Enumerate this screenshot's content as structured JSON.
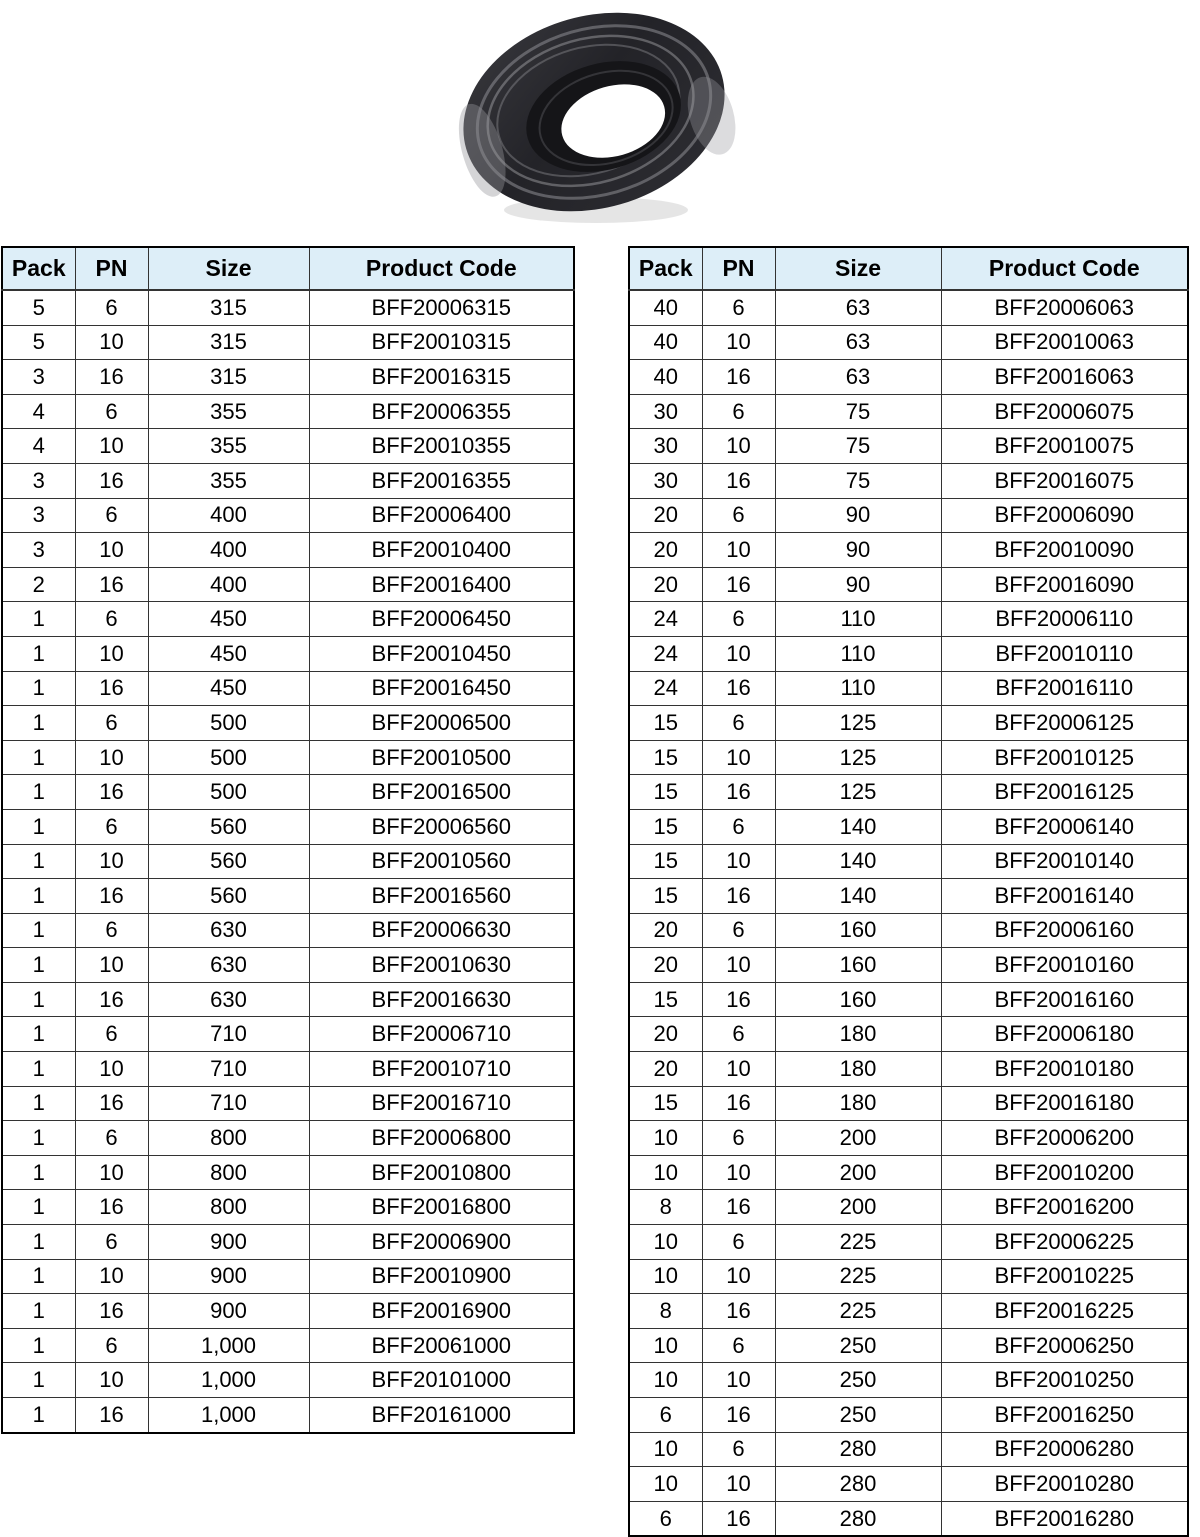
{
  "style": {
    "page_bg": "#ffffff",
    "header_bg": "#ddeef8",
    "border_color": "#333333",
    "outer_border_color": "#000000",
    "text_color": "#000000",
    "ring_dark": "#232328",
    "ring_darker": "#151518",
    "ring_highlight": "#8e8e93",
    "ring_shadow": "#bfbfbf"
  },
  "product_image": {
    "name": "black-rubber-flange-adaptor-ring"
  },
  "tables": [
    {
      "name": "left-products",
      "columns": [
        "Pack",
        "PN",
        "Size",
        "Product Code"
      ],
      "rows": [
        [
          "5",
          "6",
          "315",
          "BFF20006315"
        ],
        [
          "5",
          "10",
          "315",
          "BFF20010315"
        ],
        [
          "3",
          "16",
          "315",
          "BFF20016315"
        ],
        [
          "4",
          "6",
          "355",
          "BFF20006355"
        ],
        [
          "4",
          "10",
          "355",
          "BFF20010355"
        ],
        [
          "3",
          "16",
          "355",
          "BFF20016355"
        ],
        [
          "3",
          "6",
          "400",
          "BFF20006400"
        ],
        [
          "3",
          "10",
          "400",
          "BFF20010400"
        ],
        [
          "2",
          "16",
          "400",
          "BFF20016400"
        ],
        [
          "1",
          "6",
          "450",
          "BFF20006450"
        ],
        [
          "1",
          "10",
          "450",
          "BFF20010450"
        ],
        [
          "1",
          "16",
          "450",
          "BFF20016450"
        ],
        [
          "1",
          "6",
          "500",
          "BFF20006500"
        ],
        [
          "1",
          "10",
          "500",
          "BFF20010500"
        ],
        [
          "1",
          "16",
          "500",
          "BFF20016500"
        ],
        [
          "1",
          "6",
          "560",
          "BFF20006560"
        ],
        [
          "1",
          "10",
          "560",
          "BFF20010560"
        ],
        [
          "1",
          "16",
          "560",
          "BFF20016560"
        ],
        [
          "1",
          "6",
          "630",
          "BFF20006630"
        ],
        [
          "1",
          "10",
          "630",
          "BFF20010630"
        ],
        [
          "1",
          "16",
          "630",
          "BFF20016630"
        ],
        [
          "1",
          "6",
          "710",
          "BFF20006710"
        ],
        [
          "1",
          "10",
          "710",
          "BFF20010710"
        ],
        [
          "1",
          "16",
          "710",
          "BFF20016710"
        ],
        [
          "1",
          "6",
          "800",
          "BFF20006800"
        ],
        [
          "1",
          "10",
          "800",
          "BFF20010800"
        ],
        [
          "1",
          "16",
          "800",
          "BFF20016800"
        ],
        [
          "1",
          "6",
          "900",
          "BFF20006900"
        ],
        [
          "1",
          "10",
          "900",
          "BFF20010900"
        ],
        [
          "1",
          "16",
          "900",
          "BFF20016900"
        ],
        [
          "1",
          "6",
          "1,000",
          "BFF20061000"
        ],
        [
          "1",
          "10",
          "1,000",
          "BFF20101000"
        ],
        [
          "1",
          "16",
          "1,000",
          "BFF20161000"
        ]
      ]
    },
    {
      "name": "right-products",
      "columns": [
        "Pack",
        "PN",
        "Size",
        "Product Code"
      ],
      "rows": [
        [
          "40",
          "6",
          "63",
          "BFF20006063"
        ],
        [
          "40",
          "10",
          "63",
          "BFF20010063"
        ],
        [
          "40",
          "16",
          "63",
          "BFF20016063"
        ],
        [
          "30",
          "6",
          "75",
          "BFF20006075"
        ],
        [
          "30",
          "10",
          "75",
          "BFF20010075"
        ],
        [
          "30",
          "16",
          "75",
          "BFF20016075"
        ],
        [
          "20",
          "6",
          "90",
          "BFF20006090"
        ],
        [
          "20",
          "10",
          "90",
          "BFF20010090"
        ],
        [
          "20",
          "16",
          "90",
          "BFF20016090"
        ],
        [
          "24",
          "6",
          "110",
          "BFF20006110"
        ],
        [
          "24",
          "10",
          "110",
          "BFF20010110"
        ],
        [
          "24",
          "16",
          "110",
          "BFF20016110"
        ],
        [
          "15",
          "6",
          "125",
          "BFF20006125"
        ],
        [
          "15",
          "10",
          "125",
          "BFF20010125"
        ],
        [
          "15",
          "16",
          "125",
          "BFF20016125"
        ],
        [
          "15",
          "6",
          "140",
          "BFF20006140"
        ],
        [
          "15",
          "10",
          "140",
          "BFF20010140"
        ],
        [
          "15",
          "16",
          "140",
          "BFF20016140"
        ],
        [
          "20",
          "6",
          "160",
          "BFF20006160"
        ],
        [
          "20",
          "10",
          "160",
          "BFF20010160"
        ],
        [
          "15",
          "16",
          "160",
          "BFF20016160"
        ],
        [
          "20",
          "6",
          "180",
          "BFF20006180"
        ],
        [
          "20",
          "10",
          "180",
          "BFF20010180"
        ],
        [
          "15",
          "16",
          "180",
          "BFF20016180"
        ],
        [
          "10",
          "6",
          "200",
          "BFF20006200"
        ],
        [
          "10",
          "10",
          "200",
          "BFF20010200"
        ],
        [
          "8",
          "16",
          "200",
          "BFF20016200"
        ],
        [
          "10",
          "6",
          "225",
          "BFF20006225"
        ],
        [
          "10",
          "10",
          "225",
          "BFF20010225"
        ],
        [
          "8",
          "16",
          "225",
          "BFF20016225"
        ],
        [
          "10",
          "6",
          "250",
          "BFF20006250"
        ],
        [
          "10",
          "10",
          "250",
          "BFF20010250"
        ],
        [
          "6",
          "16",
          "250",
          "BFF20016250"
        ],
        [
          "10",
          "6",
          "280",
          "BFF20006280"
        ],
        [
          "10",
          "10",
          "280",
          "BFF20010280"
        ],
        [
          "6",
          "16",
          "280",
          "BFF20016280"
        ]
      ]
    }
  ]
}
